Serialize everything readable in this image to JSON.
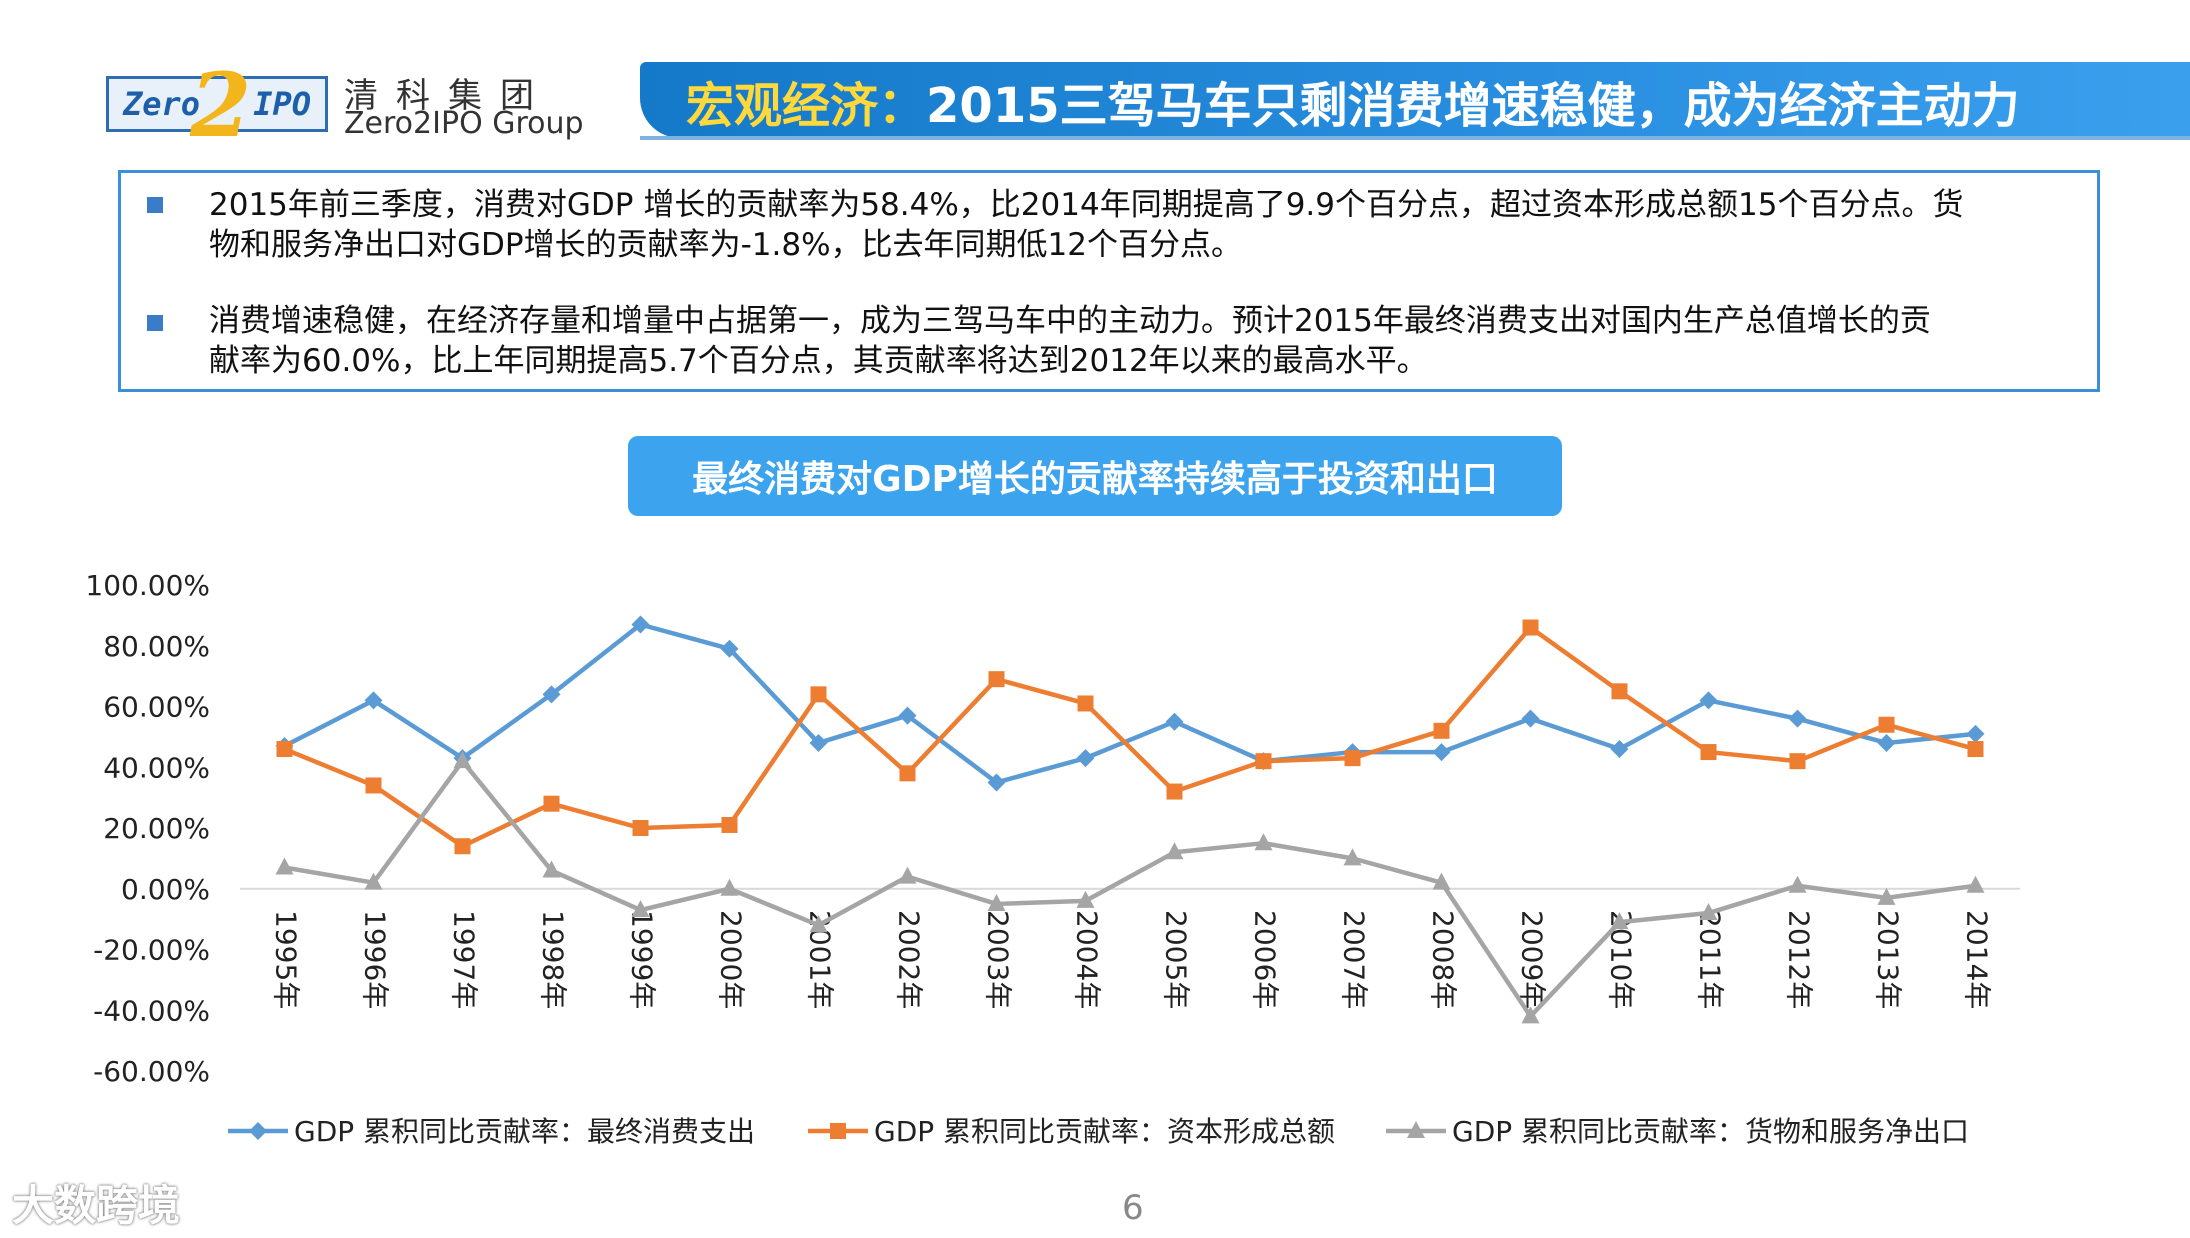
{
  "header": {
    "logo_left": "Zero",
    "logo_mid": "2",
    "logo_right": "IPO",
    "brand_cn": "清科集团",
    "brand_en": "Zero2IPO Group",
    "title_highlight": "宏观经济：",
    "title_rest": "2015三驾马车只剩消费增速稳健，成为经济主动力"
  },
  "info": {
    "bullets": [
      {
        "line1": "2015年前三季度，消费对GDP 增长的贡献率为58.4%，比2014年同期提高了9.9个百分点，超过资本形成总额15个百分点。货",
        "line2": "物和服务净出口对GDP增长的贡献率为-1.8%，比去年同期低12个百分点。"
      },
      {
        "line1": "消费增速稳健，在经济存量和增量中占据第一，成为三驾马车中的主动力。预计2015年最终消费支出对国内生产总值增长的贡",
        "line2": "献率为60.0%，比上年同期提高5.7个百分点，其贡献率将达到2012年以来的最高水平。"
      }
    ]
  },
  "chart_title": "最终消费对GDP增长的贡献率持续高于投资和出口",
  "chart_data": {
    "type": "line",
    "title": "最终消费对GDP增长的贡献率持续高于投资和出口",
    "categories": [
      "1995年",
      "1996年",
      "1997年",
      "1998年",
      "1999年",
      "2000年",
      "2001年",
      "2002年",
      "2003年",
      "2004年",
      "2005年",
      "2006年",
      "2007年",
      "2008年",
      "2009年",
      "2010年",
      "2011年",
      "2012年",
      "2013年",
      "2014年"
    ],
    "ylim": [
      -60,
      100
    ],
    "yticks": [
      100,
      80,
      60,
      40,
      20,
      0,
      -20,
      -40,
      -60
    ],
    "ytick_labels": [
      "100.00%",
      "80.00%",
      "60.00%",
      "40.00%",
      "20.00%",
      "0.00%",
      "-20.00%",
      "-40.00%",
      "-60.00%"
    ],
    "series": [
      {
        "name": "GDP 累积同比贡献率：最终消费支出",
        "color": "#5b9bd5",
        "marker": "diamond",
        "values": [
          47,
          62,
          43,
          64,
          87,
          79,
          48,
          57,
          35,
          43,
          55,
          42,
          45,
          45,
          56,
          46,
          62,
          56,
          48,
          51
        ]
      },
      {
        "name": "GDP 累积同比贡献率：资本形成总额",
        "color": "#ed7d31",
        "marker": "square",
        "values": [
          46,
          34,
          14,
          28,
          20,
          21,
          64,
          38,
          69,
          61,
          32,
          42,
          43,
          52,
          86,
          65,
          45,
          42,
          54,
          46
        ]
      },
      {
        "name": "GDP 累积同比贡献率：货物和服务净出口",
        "color": "#a5a5a5",
        "marker": "triangle",
        "values": [
          7,
          2,
          42,
          6,
          -7,
          0,
          -12,
          4,
          -5,
          -4,
          12,
          15,
          10,
          2,
          -42,
          -11,
          -8,
          1,
          -3,
          1
        ]
      }
    ]
  },
  "watermark": "大数跨境",
  "page_number": "6"
}
